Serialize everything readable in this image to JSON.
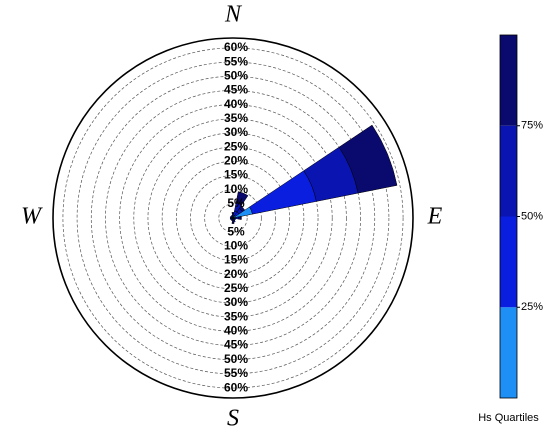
{
  "chart_data": {
    "type": "windrose",
    "categories": [
      "N",
      null,
      null,
      null,
      "E",
      null,
      null,
      null,
      "S",
      null,
      null,
      null,
      "W",
      null,
      null,
      null
    ],
    "rlim": [
      0,
      63.5
    ],
    "rticks": [
      {
        "value": 5,
        "label": "5%"
      },
      {
        "value": 10,
        "label": "10%"
      },
      {
        "value": 15,
        "label": "15%"
      },
      {
        "value": 20,
        "label": "20%"
      },
      {
        "value": 25,
        "label": "25%"
      },
      {
        "value": 30,
        "label": "30%"
      },
      {
        "value": 35,
        "label": "35%"
      },
      {
        "value": 40,
        "label": "40%"
      },
      {
        "value": 45,
        "label": "45%"
      },
      {
        "value": 50,
        "label": "50%"
      },
      {
        "value": 55,
        "label": "55%"
      },
      {
        "value": 60,
        "label": "60%"
      }
    ],
    "series": [
      {
        "color": "#1e90f5",
        "values": [
          0.5,
          1,
          1,
          7,
          1,
          0.5,
          0.5,
          0.5,
          0.5,
          0.5,
          0.5,
          0.5,
          0.5,
          0.5,
          0.5,
          0.5
        ]
      },
      {
        "color": "#0a1ee0",
        "values": [
          0.5,
          1.5,
          1.5,
          23,
          1,
          0.5,
          0.5,
          0.5,
          0.5,
          0.5,
          0.5,
          0.5,
          0.5,
          0.5,
          0.5,
          0.5
        ]
      },
      {
        "color": "#0a14b0",
        "values": [
          0.5,
          3,
          1.5,
          15,
          0.5,
          0,
          0,
          0.5,
          0.5,
          0,
          0,
          0,
          0,
          0,
          0,
          0
        ]
      },
      {
        "color": "#0a0a6e",
        "values": [
          0.5,
          4,
          1,
          14,
          0.5,
          0,
          0,
          0,
          0.5,
          0,
          0,
          0,
          0,
          0,
          0,
          0
        ]
      }
    ],
    "colorbar": {
      "title": "Hs Quartiles",
      "lim": [
        0,
        100
      ],
      "ticks": [
        {
          "value": 25,
          "label": "25%"
        },
        {
          "value": 50,
          "label": "50%"
        },
        {
          "value": 75,
          "label": "75%"
        }
      ]
    }
  }
}
